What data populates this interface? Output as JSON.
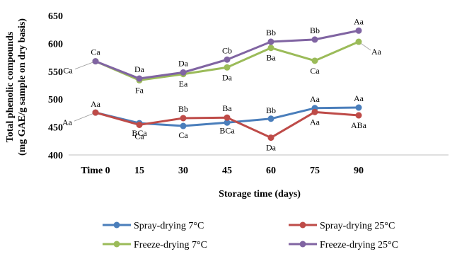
{
  "chart_data": {
    "type": "line",
    "xlabel": "Storage time  (days)",
    "ylabel_line1": "Total phenolic compounds",
    "ylabel_line2": "(mg GAE/g sample on dry basis)",
    "categories": [
      "Time 0",
      "15",
      "30",
      "45",
      "60",
      "75",
      "90"
    ],
    "ylim": [
      400,
      650
    ],
    "yticks": [
      400,
      450,
      500,
      550,
      600,
      650
    ],
    "grid": false,
    "legend_position": "bottom",
    "series": [
      {
        "name": "Spray-drying  7°C",
        "color": "#4a7ebb",
        "values": [
          476,
          457,
          452,
          458,
          465,
          484,
          485
        ],
        "labels": [
          "Aa",
          "BCa",
          "Ca",
          "BCa",
          "Bb",
          "Aa",
          "Aa"
        ]
      },
      {
        "name": "Spray-drying 25°C",
        "color": "#be4b48",
        "values": [
          476,
          454,
          466,
          467,
          431,
          477,
          471
        ],
        "labels": [
          "Aa",
          "Ca",
          "Bb",
          "Ba",
          "Da",
          "Aa",
          "ABa"
        ]
      },
      {
        "name": "Freeze-drying 7°C",
        "color": "#9bbb59",
        "values": [
          568,
          534,
          545,
          557,
          592,
          569,
          603
        ],
        "labels": [
          "Ca",
          "Fa",
          "Ea",
          "Da",
          "Ba",
          "Ca",
          "Aa"
        ]
      },
      {
        "name": "Freeze-drying 25°C",
        "color": "#8064a2",
        "values": [
          568,
          537,
          548,
          571,
          603,
          607,
          623
        ],
        "labels": [
          "Ca",
          "Da",
          "Da",
          "Cb",
          "Bb",
          "Bb",
          "Aa"
        ]
      }
    ]
  }
}
